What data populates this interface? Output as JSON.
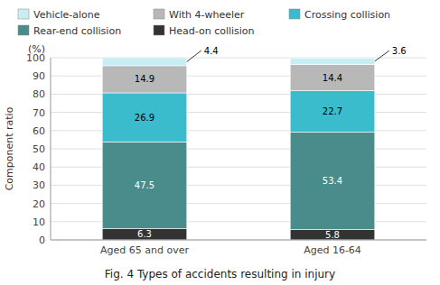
{
  "chart_data": {
    "type": "bar",
    "stacked": true,
    "title": "Fig. 4  Types of accidents resulting in injury",
    "ylabel": "Component ratio",
    "yunit": "(%)",
    "categories": [
      "Aged 65 and over",
      "Aged 16-64"
    ],
    "series": [
      {
        "name": "Head-on collision",
        "color": "#333333",
        "values": [
          6.3,
          5.8
        ]
      },
      {
        "name": "Rear-end collision",
        "color": "#4a8c8c",
        "values": [
          47.5,
          53.4
        ]
      },
      {
        "name": "Crossing collision",
        "color": "#3bbccc",
        "values": [
          26.9,
          22.7
        ]
      },
      {
        "name": "With 4-wheeler",
        "color": "#b8b8b8",
        "values": [
          14.9,
          14.4
        ]
      },
      {
        "name": "Vehicle-alone",
        "color": "#c8eef4",
        "values": [
          4.4,
          3.6
        ]
      }
    ],
    "ylim": [
      0,
      100
    ],
    "yticks": [
      0,
      10,
      20,
      30,
      40,
      50,
      60,
      70,
      80,
      90,
      100
    ],
    "grid": true,
    "legend": "top",
    "data_labels": true
  }
}
